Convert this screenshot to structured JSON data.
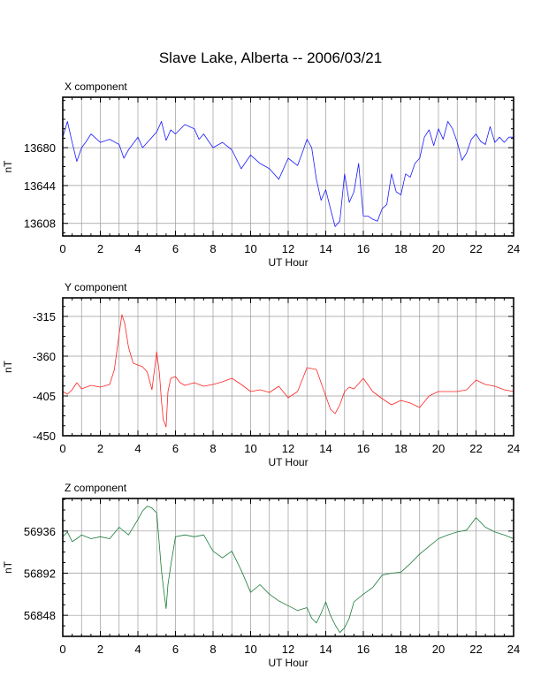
{
  "title": "Slave Lake, Alberta -- 2006/03/21",
  "chart_data": [
    {
      "type": "line",
      "title": "X component",
      "xlabel": "UT Hour",
      "ylabel": "nT",
      "xlim": [
        0,
        24
      ],
      "ylim": [
        13596,
        13728
      ],
      "xticks": [
        "0",
        "2",
        "4",
        "6",
        "8",
        "10",
        "12",
        "14",
        "16",
        "18",
        "20",
        "22",
        "24"
      ],
      "yticks": [
        "13608",
        "13644",
        "13680"
      ],
      "ytick_values": [
        13608,
        13644,
        13680
      ],
      "grid": true,
      "color": "#1a1aff",
      "x": [
        0,
        0.25,
        0.5,
        0.75,
        1,
        1.25,
        1.5,
        2,
        2.5,
        3,
        3.25,
        3.5,
        4,
        4.25,
        4.5,
        5,
        5.25,
        5.5,
        5.75,
        6,
        6.5,
        7,
        7.25,
        7.5,
        8,
        8.5,
        9,
        9.5,
        10,
        10.5,
        11,
        11.5,
        12,
        12.5,
        12.75,
        13,
        13.25,
        13.5,
        13.75,
        14,
        14.25,
        14.5,
        14.75,
        15,
        15.25,
        15.5,
        15.75,
        16,
        16.25,
        16.5,
        16.75,
        17,
        17.25,
        17.5,
        17.75,
        18,
        18.25,
        18.5,
        18.75,
        19,
        19.25,
        19.5,
        19.75,
        20,
        20.25,
        20.5,
        20.75,
        21,
        21.25,
        21.5,
        21.75,
        22,
        22.25,
        22.5,
        22.75,
        23,
        23.25,
        23.5,
        23.75,
        24
      ],
      "y": [
        13690,
        13705,
        13685,
        13667,
        13680,
        13686,
        13693,
        13685,
        13688,
        13683,
        13670,
        13678,
        13690,
        13680,
        13685,
        13695,
        13705,
        13687,
        13697,
        13693,
        13702,
        13698,
        13688,
        13693,
        13680,
        13685,
        13678,
        13660,
        13673,
        13665,
        13660,
        13650,
        13670,
        13663,
        13675,
        13688,
        13680,
        13650,
        13630,
        13640,
        13622,
        13605,
        13610,
        13655,
        13628,
        13638,
        13665,
        13615,
        13615,
        13612,
        13610,
        13622,
        13626,
        13655,
        13638,
        13635,
        13655,
        13652,
        13665,
        13670,
        13690,
        13697,
        13682,
        13698,
        13688,
        13705,
        13698,
        13685,
        13668,
        13675,
        13688,
        13693,
        13686,
        13683,
        13700,
        13685,
        13690,
        13685,
        13690,
        13690
      ]
    },
    {
      "type": "line",
      "title": "Y component",
      "xlabel": "UT Hour",
      "ylabel": "nT",
      "xlim": [
        0,
        24
      ],
      "ylim": [
        -450,
        -294
      ],
      "xticks": [
        "0",
        "2",
        "4",
        "6",
        "8",
        "10",
        "12",
        "14",
        "16",
        "18",
        "20",
        "22",
        "24"
      ],
      "yticks": [
        "-315",
        "-360",
        "-405",
        "-450"
      ],
      "ytick_values": [
        -315,
        -360,
        -405,
        -450
      ],
      "grid": true,
      "color": "#ff2222",
      "x": [
        0,
        0.25,
        0.5,
        0.75,
        1,
        1.5,
        2,
        2.5,
        2.75,
        3,
        3.15,
        3.3,
        3.5,
        3.75,
        4,
        4.25,
        4.5,
        4.75,
        5,
        5.15,
        5.25,
        5.35,
        5.5,
        5.6,
        5.75,
        6,
        6.25,
        6.5,
        7,
        7.5,
        8,
        8.5,
        9,
        9.5,
        10,
        10.5,
        11,
        11.5,
        12,
        12.5,
        13,
        13.5,
        14,
        14.25,
        14.5,
        14.75,
        15,
        15.25,
        15.5,
        16,
        16.5,
        17,
        17.5,
        18,
        18.5,
        19,
        19.5,
        20,
        20.5,
        21,
        21.5,
        22,
        22.5,
        23,
        23.5,
        24
      ],
      "y": [
        -400,
        -403,
        -398,
        -390,
        -397,
        -393,
        -395,
        -392,
        -375,
        -335,
        -313,
        -323,
        -350,
        -368,
        -370,
        -372,
        -378,
        -398,
        -355,
        -380,
        -410,
        -432,
        -440,
        -400,
        -385,
        -383,
        -390,
        -393,
        -390,
        -394,
        -392,
        -389,
        -385,
        -392,
        -400,
        -398,
        -401,
        -394,
        -407,
        -400,
        -373,
        -375,
        -405,
        -420,
        -425,
        -415,
        -400,
        -395,
        -397,
        -385,
        -400,
        -408,
        -415,
        -410,
        -413,
        -418,
        -405,
        -400,
        -400,
        -400,
        -398,
        -387,
        -392,
        -394,
        -398,
        -400
      ]
    },
    {
      "type": "line",
      "title": "Z component",
      "xlabel": "UT Hour",
      "ylabel": "nT",
      "xlim": [
        0,
        24
      ],
      "ylim": [
        56826,
        56970
      ],
      "xticks": [
        "0",
        "2",
        "4",
        "6",
        "8",
        "10",
        "12",
        "14",
        "16",
        "18",
        "20",
        "22",
        "24"
      ],
      "yticks": [
        "56848",
        "56892",
        "56936"
      ],
      "ytick_values": [
        56848,
        56892,
        56936
      ],
      "grid": true,
      "color": "#1a7a3a",
      "x": [
        0,
        0.25,
        0.5,
        0.75,
        1,
        1.5,
        2,
        2.5,
        3,
        3.5,
        4,
        4.25,
        4.5,
        4.75,
        5,
        5.15,
        5.25,
        5.4,
        5.5,
        5.6,
        5.75,
        6,
        6.5,
        7,
        7.5,
        8,
        8.5,
        9,
        9.5,
        10,
        10.5,
        11,
        11.5,
        12,
        12.5,
        13,
        13.25,
        13.5,
        13.75,
        14,
        14.25,
        14.5,
        14.75,
        15,
        15.25,
        15.5,
        16,
        16.5,
        17,
        17.5,
        18,
        18.5,
        19,
        19.5,
        20,
        20.5,
        21,
        21.5,
        22,
        22.5,
        23,
        23.5,
        24
      ],
      "y": [
        56930,
        56935,
        56925,
        56928,
        56932,
        56928,
        56930,
        56928,
        56940,
        56932,
        56948,
        56957,
        56962,
        56960,
        56955,
        56920,
        56895,
        56870,
        56855,
        56880,
        56900,
        56930,
        56932,
        56930,
        56932,
        56915,
        56908,
        56915,
        56895,
        56872,
        56880,
        56870,
        56863,
        56858,
        56853,
        56856,
        56845,
        56840,
        56850,
        56862,
        56848,
        56838,
        56830,
        56835,
        56845,
        56862,
        56870,
        56877,
        56890,
        56892,
        56893,
        56902,
        56912,
        56920,
        56928,
        56932,
        56935,
        56937,
        56950,
        56940,
        56935,
        56932,
        56928
      ]
    }
  ]
}
